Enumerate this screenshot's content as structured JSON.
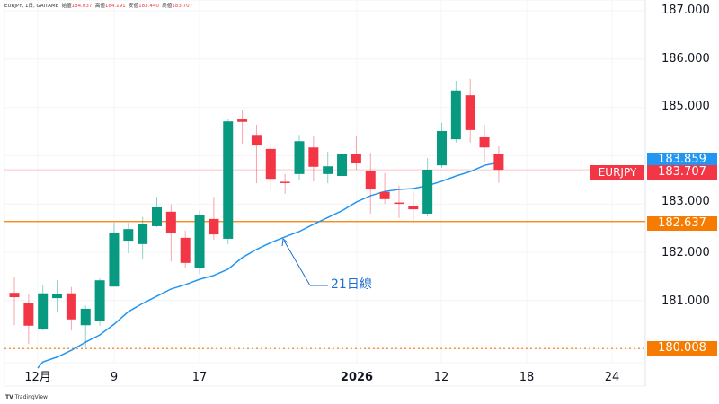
{
  "header": {
    "symbol_info": "EURJPY, 1日, GAITAME",
    "open_label": "始値",
    "open": "184.037",
    "high_label": "高値",
    "high": "184.191",
    "low_label": "安値",
    "low": "183.440",
    "close_label": "終値",
    "close": "183.707"
  },
  "branding": "TradingView",
  "colors": {
    "up": "#089981",
    "down": "#f23645",
    "ma": "#2196f3",
    "level": "#f57c00",
    "ma_badge": "#2196f3",
    "price_badge": "#f23645"
  },
  "chart_data": {
    "type": "candlestick",
    "symbol": "EURJPY",
    "x_ticks": [
      "12月",
      "9",
      "17",
      "2026",
      "12",
      "18",
      "24"
    ],
    "y_ticks": [
      "187.000",
      "186.000",
      "185.000",
      "183.000",
      "182.000",
      "181.000"
    ],
    "ylim": [
      179.6,
      187.0
    ],
    "grid": true,
    "candles": [
      {
        "o": 181.16,
        "h": 181.5,
        "l": 180.49,
        "c": 181.07
      },
      {
        "o": 180.94,
        "h": 181.13,
        "l": 180.1,
        "c": 180.48
      },
      {
        "o": 180.4,
        "h": 181.33,
        "l": 180.38,
        "c": 181.15
      },
      {
        "o": 181.05,
        "h": 181.42,
        "l": 180.75,
        "c": 181.13
      },
      {
        "o": 181.15,
        "h": 181.28,
        "l": 180.38,
        "c": 180.61
      },
      {
        "o": 180.49,
        "h": 180.9,
        "l": 180.05,
        "c": 180.83
      },
      {
        "o": 180.57,
        "h": 181.46,
        "l": 180.48,
        "c": 181.42
      },
      {
        "o": 181.29,
        "h": 182.61,
        "l": 181.29,
        "c": 182.41
      },
      {
        "o": 182.24,
        "h": 182.61,
        "l": 181.98,
        "c": 182.48
      },
      {
        "o": 182.17,
        "h": 182.73,
        "l": 181.87,
        "c": 182.59
      },
      {
        "o": 182.54,
        "h": 183.15,
        "l": 182.52,
        "c": 182.93
      },
      {
        "o": 182.84,
        "h": 182.99,
        "l": 181.81,
        "c": 182.39
      },
      {
        "o": 182.3,
        "h": 182.45,
        "l": 181.68,
        "c": 181.78
      },
      {
        "o": 181.68,
        "h": 182.86,
        "l": 181.55,
        "c": 182.78
      },
      {
        "o": 182.69,
        "h": 183.15,
        "l": 182.26,
        "c": 182.37
      },
      {
        "o": 182.28,
        "h": 184.75,
        "l": 182.17,
        "c": 184.71
      },
      {
        "o": 184.75,
        "h": 184.94,
        "l": 184.25,
        "c": 184.7
      },
      {
        "o": 184.43,
        "h": 184.64,
        "l": 183.43,
        "c": 184.21
      },
      {
        "o": 184.14,
        "h": 184.27,
        "l": 183.28,
        "c": 183.52
      },
      {
        "o": 183.46,
        "h": 183.62,
        "l": 183.21,
        "c": 183.45
      },
      {
        "o": 183.62,
        "h": 184.43,
        "l": 183.49,
        "c": 184.3
      },
      {
        "o": 184.17,
        "h": 184.42,
        "l": 183.47,
        "c": 183.77
      },
      {
        "o": 183.62,
        "h": 184.08,
        "l": 183.43,
        "c": 183.78
      },
      {
        "o": 183.58,
        "h": 184.25,
        "l": 183.52,
        "c": 184.04
      },
      {
        "o": 184.03,
        "h": 184.42,
        "l": 183.71,
        "c": 183.84
      },
      {
        "o": 183.69,
        "h": 184.06,
        "l": 182.8,
        "c": 183.3
      },
      {
        "o": 183.25,
        "h": 183.64,
        "l": 183.0,
        "c": 183.1
      },
      {
        "o": 183.03,
        "h": 183.38,
        "l": 182.71,
        "c": 183.02
      },
      {
        "o": 182.95,
        "h": 183.25,
        "l": 182.63,
        "c": 182.89
      },
      {
        "o": 182.8,
        "h": 183.95,
        "l": 182.74,
        "c": 183.71
      },
      {
        "o": 183.8,
        "h": 184.68,
        "l": 183.75,
        "c": 184.51
      },
      {
        "o": 184.34,
        "h": 185.55,
        "l": 184.27,
        "c": 185.35
      },
      {
        "o": 185.25,
        "h": 185.59,
        "l": 184.27,
        "c": 184.53
      },
      {
        "o": 184.38,
        "h": 184.64,
        "l": 183.86,
        "c": 184.17
      },
      {
        "o": 184.037,
        "h": 184.191,
        "l": 183.44,
        "c": 183.707
      }
    ],
    "ma21": [
      null,
      null,
      179.73,
      179.83,
      179.97,
      180.14,
      180.29,
      180.51,
      180.77,
      180.94,
      181.09,
      181.24,
      181.33,
      181.44,
      181.52,
      181.65,
      181.89,
      182.06,
      182.2,
      182.32,
      182.43,
      182.58,
      182.72,
      182.86,
      183.04,
      183.17,
      183.26,
      183.3,
      183.32,
      183.38,
      183.47,
      183.58,
      183.67,
      183.8,
      183.859
    ],
    "annotation": "21日線",
    "levels": [
      {
        "value": 182.637,
        "label": "182.637",
        "style": "solid"
      },
      {
        "value": 180.008,
        "label": "180.008",
        "style": "dotted"
      }
    ],
    "ma_last_label": "183.859",
    "price_label": "183.707",
    "symbol_label": "EURJPY"
  }
}
